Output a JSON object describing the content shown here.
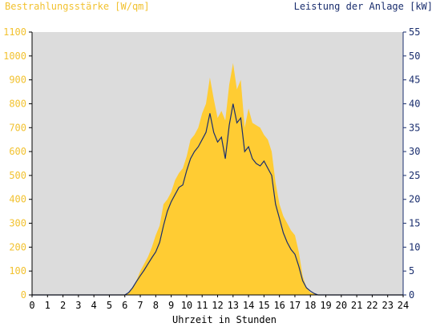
{
  "chart_data": {
    "type": "area",
    "left_axis_label": "Bestrahlungsstärke [W/qm]",
    "right_axis_label": "Leistung der Anlage [kW]",
    "xlabel": "Uhrzeit in Stunden",
    "x_ticks": [
      "0",
      "1",
      "2",
      "3",
      "4",
      "5",
      "6",
      "7",
      "8",
      "9",
      "10",
      "11",
      "12",
      "13",
      "14",
      "15",
      "16",
      "17",
      "18",
      "19",
      "20",
      "21",
      "22",
      "23",
      "24"
    ],
    "y_left_ticks": [
      "0",
      "100",
      "200",
      "300",
      "400",
      "500",
      "600",
      "700",
      "800",
      "900",
      "1000",
      "1100"
    ],
    "y_right_ticks": [
      "0",
      "5",
      "10",
      "15",
      "20",
      "25",
      "30",
      "35",
      "40",
      "45",
      "50",
      "55"
    ],
    "xlim": [
      0,
      24
    ],
    "ylim_left": [
      0,
      1100
    ],
    "ylim_right": [
      0,
      55
    ],
    "grid": false,
    "colors": {
      "irradiance": "#ffcc33",
      "power": "#1a2e6e",
      "plot_background": "#dcdcdc",
      "left_axis_text": "#f2c230",
      "right_axis_text": "#1a2e6e"
    },
    "series": [
      {
        "axis": "left",
        "style": "area",
        "x": [
          0,
          6.0,
          6.25,
          6.5,
          6.75,
          7.0,
          7.25,
          7.5,
          7.75,
          8.0,
          8.25,
          8.5,
          8.75,
          9.0,
          9.25,
          9.5,
          9.75,
          10.0,
          10.25,
          10.5,
          10.75,
          11.0,
          11.25,
          11.5,
          11.75,
          12.0,
          12.25,
          12.5,
          12.75,
          13.0,
          13.25,
          13.5,
          13.75,
          14.0,
          14.25,
          14.5,
          14.75,
          15.0,
          15.25,
          15.5,
          15.75,
          16.0,
          16.25,
          16.5,
          16.75,
          17.0,
          17.25,
          17.5,
          17.75,
          18.0,
          18.25,
          18.5,
          18.75,
          19.0,
          19.25,
          24
        ],
        "values": [
          0,
          0,
          10,
          30,
          60,
          100,
          130,
          160,
          200,
          250,
          290,
          380,
          400,
          430,
          480,
          510,
          530,
          580,
          650,
          670,
          700,
          760,
          800,
          910,
          820,
          740,
          770,
          730,
          880,
          970,
          860,
          900,
          700,
          780,
          720,
          710,
          700,
          670,
          650,
          600,
          470,
          380,
          330,
          300,
          270,
          250,
          180,
          80,
          30,
          10,
          5,
          0,
          0,
          0,
          0,
          0
        ]
      },
      {
        "axis": "right",
        "style": "line",
        "x": [
          0,
          6.0,
          6.25,
          6.5,
          6.75,
          7.0,
          7.25,
          7.5,
          7.75,
          8.0,
          8.25,
          8.5,
          8.75,
          9.0,
          9.25,
          9.5,
          9.75,
          10.0,
          10.25,
          10.5,
          10.75,
          11.0,
          11.25,
          11.5,
          11.75,
          12.0,
          12.25,
          12.5,
          12.75,
          13.0,
          13.25,
          13.5,
          13.75,
          14.0,
          14.25,
          14.5,
          14.75,
          15.0,
          15.25,
          15.5,
          15.75,
          16.0,
          16.25,
          16.5,
          16.75,
          17.0,
          17.25,
          17.5,
          17.75,
          18.0,
          18.25,
          18.5,
          18.75,
          19.0,
          19.25,
          24
        ],
        "values": [
          0,
          0,
          0.5,
          1.5,
          2.8,
          4.0,
          5.2,
          6.5,
          7.8,
          9.0,
          11.0,
          14.5,
          17.5,
          19.5,
          21.0,
          22.5,
          23.0,
          26.0,
          28.5,
          30.0,
          31.0,
          32.5,
          34.0,
          38.0,
          34.0,
          32.0,
          33.0,
          28.5,
          35.5,
          40.0,
          36.0,
          37.0,
          30.0,
          31.0,
          28.5,
          27.5,
          27.0,
          28.0,
          26.5,
          25.0,
          19.0,
          16.0,
          13.0,
          11.0,
          9.5,
          8.5,
          6.0,
          3.0,
          1.5,
          0.8,
          0.3,
          0,
          0,
          0,
          0,
          0
        ]
      }
    ]
  }
}
